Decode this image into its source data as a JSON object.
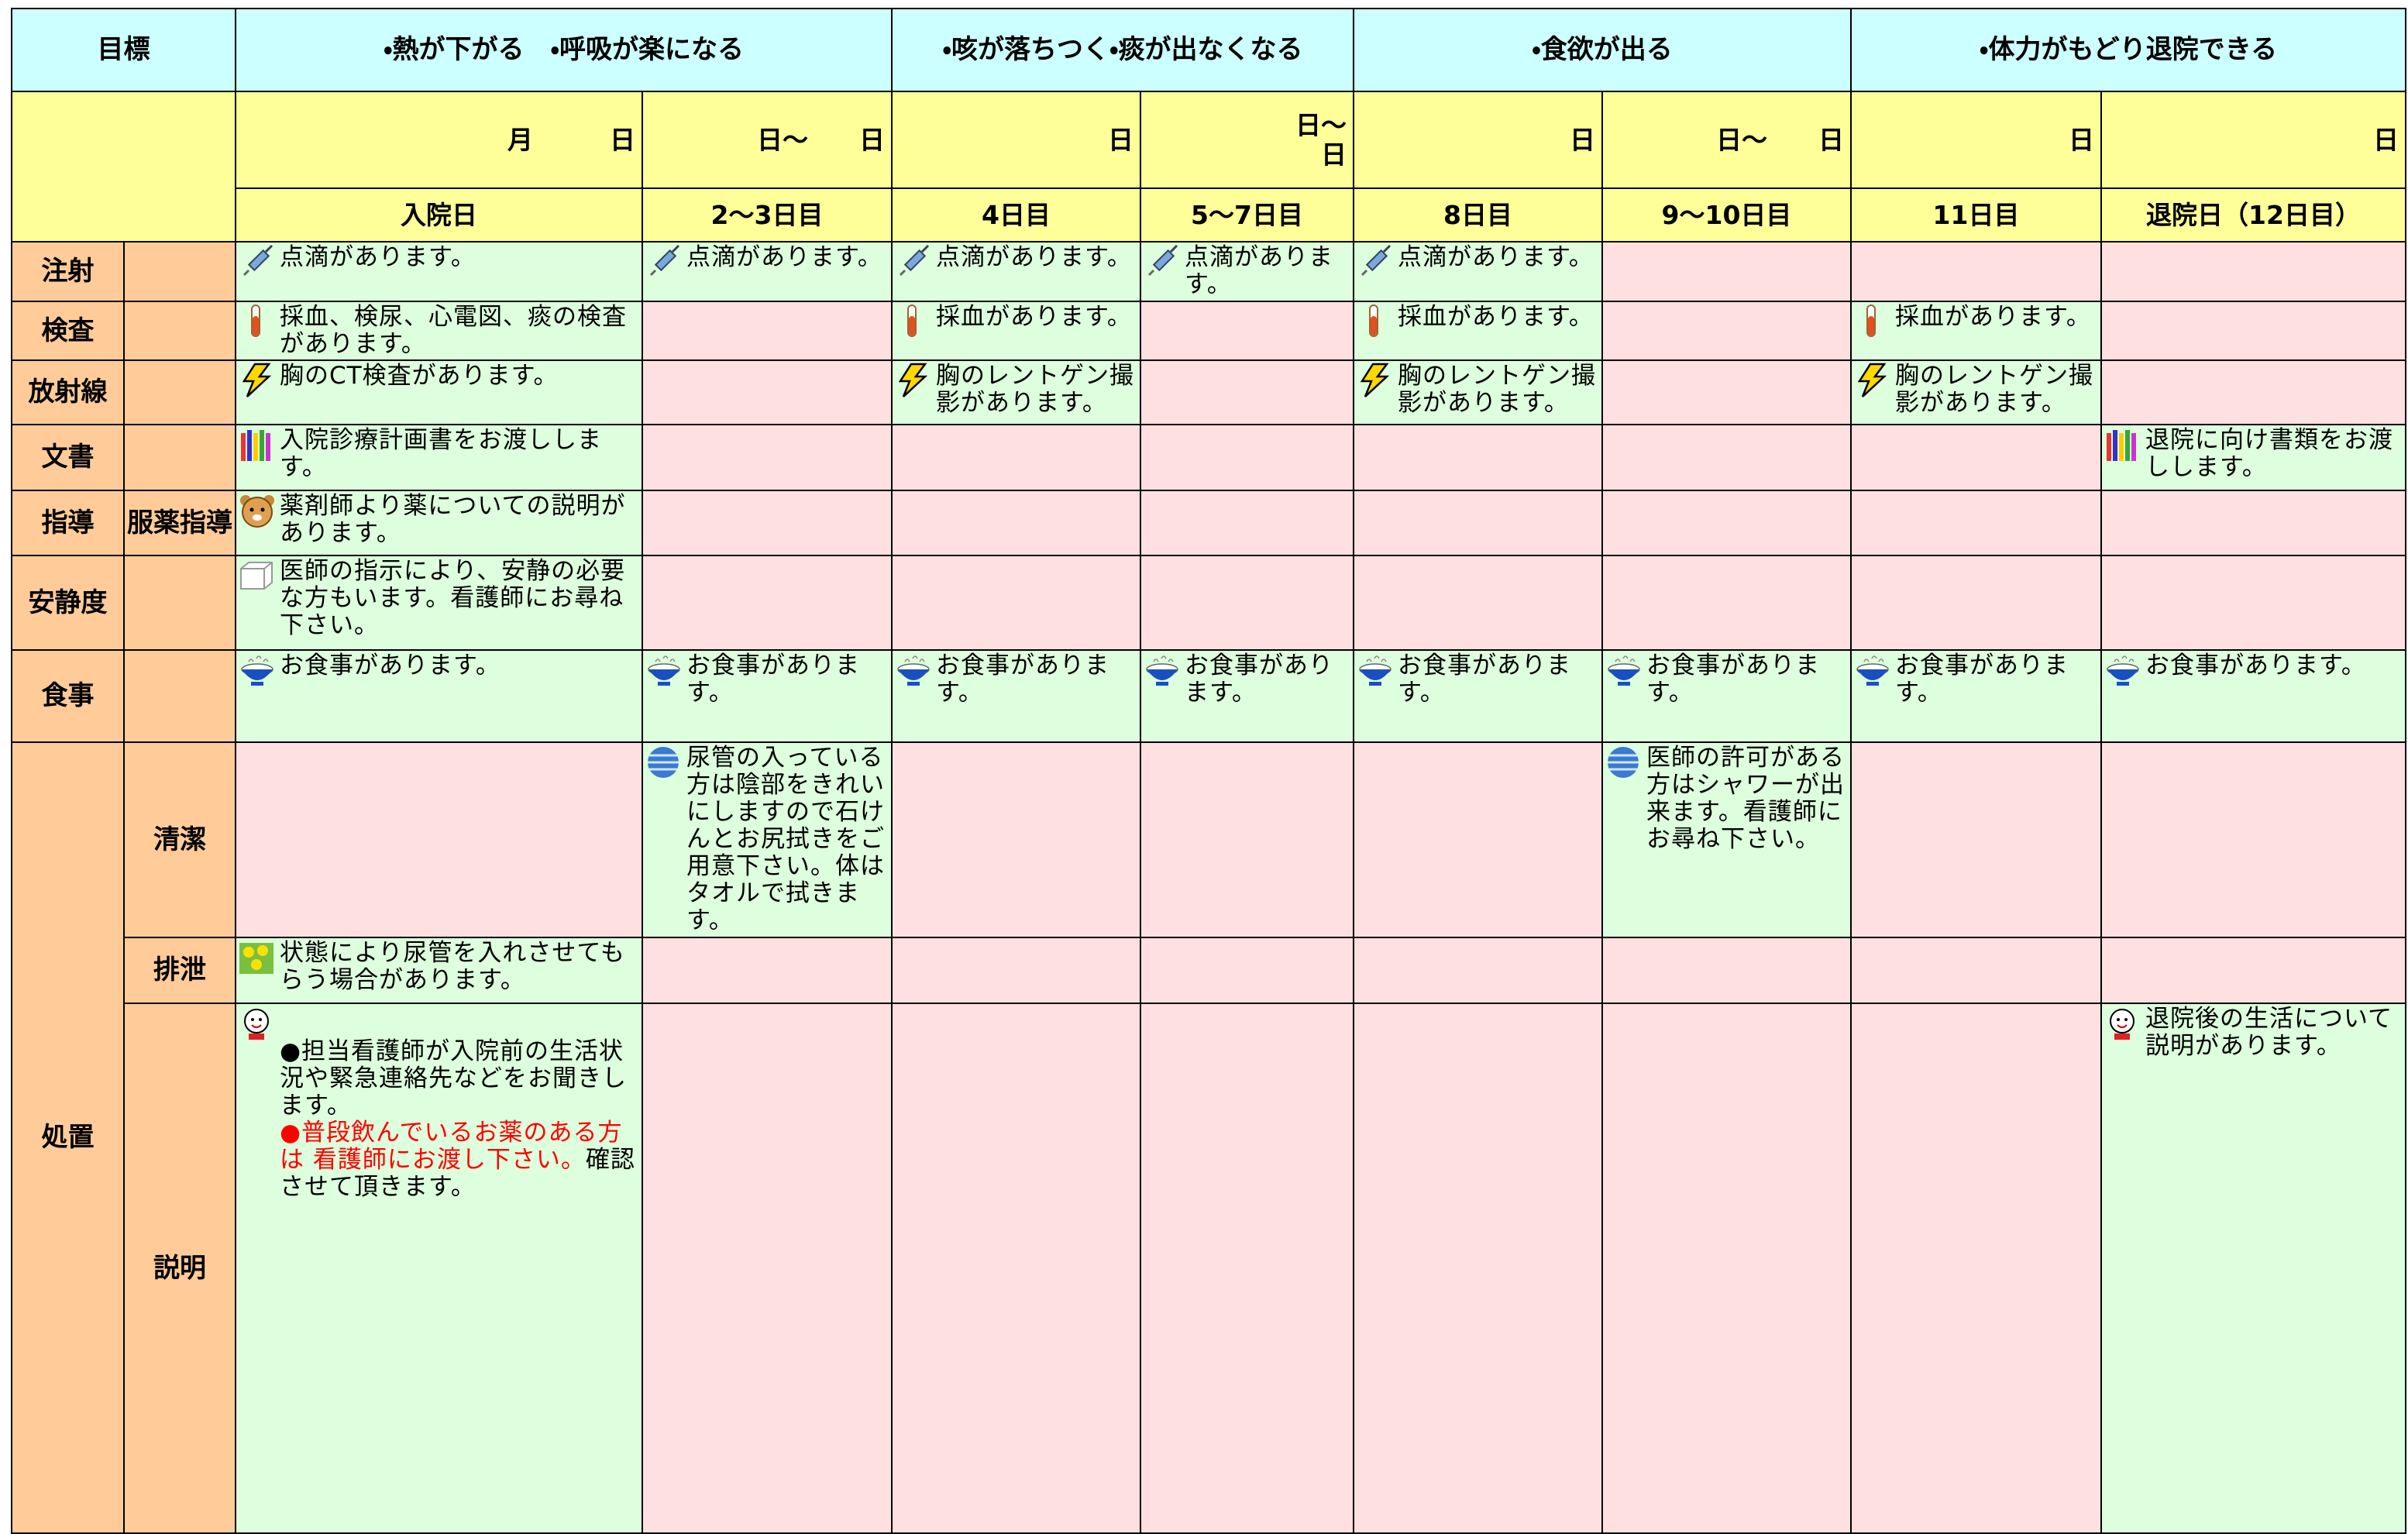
{
  "header": {
    "goal_label": "目標",
    "goals": [
      "・熱が下がる　・呼吸が楽になる",
      "・咳が落ちつく・痰が出なくなる",
      "・食欲が出る",
      "・体力がもどり退院できる"
    ]
  },
  "dates": [
    "月　　　日",
    "日～　　日",
    "日",
    "日～\n日",
    "日",
    "日～　　日",
    "日",
    "日"
  ],
  "days": [
    "入院日",
    "2～3日目",
    "4日目",
    "5～7日目",
    "8日目",
    "9～10日目",
    "11日目",
    "退院日（12日目）"
  ],
  "rows": [
    {
      "label": "注射",
      "cells": [
        "点滴があります。",
        "点滴があります。",
        "点滴があります。",
        "点滴があります。",
        "点滴があります。",
        null,
        null,
        null
      ]
    },
    {
      "label": "検査",
      "cells": [
        "採血、検尿、心電図、痰の検査があります。",
        null,
        "採血があります。",
        null,
        "採血があります。",
        null,
        "採血があります。",
        null
      ]
    },
    {
      "label": "放射線",
      "cells": [
        "胸のCT検査があります。",
        null,
        "胸のレントゲン撮影があります。",
        null,
        "胸のレントゲン撮影があります。",
        null,
        "胸のレントゲン撮影があります。",
        null
      ]
    },
    {
      "label": "文書",
      "cells": [
        "入院診療計画書をお渡しします。",
        null,
        null,
        null,
        null,
        null,
        null,
        "退院に向け書類をお渡しします。"
      ]
    },
    {
      "label": "指導",
      "sublabel": "服薬指導",
      "cells": [
        "薬剤師より薬についての説明があります。",
        null,
        null,
        null,
        null,
        null,
        null,
        null
      ]
    },
    {
      "label": "安静度",
      "cells": [
        "医師の指示により、安静の必要な方もいます。看護師にお尋ね下さい。",
        null,
        null,
        null,
        null,
        null,
        null,
        null
      ]
    },
    {
      "label": "食事",
      "cells": [
        "お食事があります。",
        "お食事があります。",
        "お食事があります。",
        "お食事があります。",
        "お食事があります。",
        "お食事があります。",
        "お食事があります。",
        "お食事があります。"
      ]
    }
  ],
  "treatment": {
    "label": "処置",
    "rows": [
      {
        "label": "清潔",
        "cells": [
          null,
          "尿管の入っている方は陰部をきれいにしますので石けんとお尻拭きをご用意下さい。体はタオルで拭きます。",
          null,
          null,
          null,
          "医師の許可がある方はシャワーが出来ます。看護師にお尋ね下さい。",
          null,
          null
        ]
      },
      {
        "label": "排泄",
        "cells": [
          "状態により尿管を入れさせてもらう場合があります。",
          null,
          null,
          null,
          null,
          null,
          null,
          null
        ]
      },
      {
        "label": "説明",
        "cells": [
          {
            "parts": [
              {
                "text": "●担当看護師が入院前の生活状況や緊急連絡先などをお聞きします。"
              },
              {
                "text": "●普段飲んでいるお薬のある方は 看護師にお渡し下さい。",
                "color": "#ff0000"
              },
              {
                "text": "確認させて頂きます。"
              }
            ]
          },
          null,
          null,
          null,
          null,
          null,
          null,
          "退院後の生活について説明があります。"
        ]
      }
    ]
  }
}
